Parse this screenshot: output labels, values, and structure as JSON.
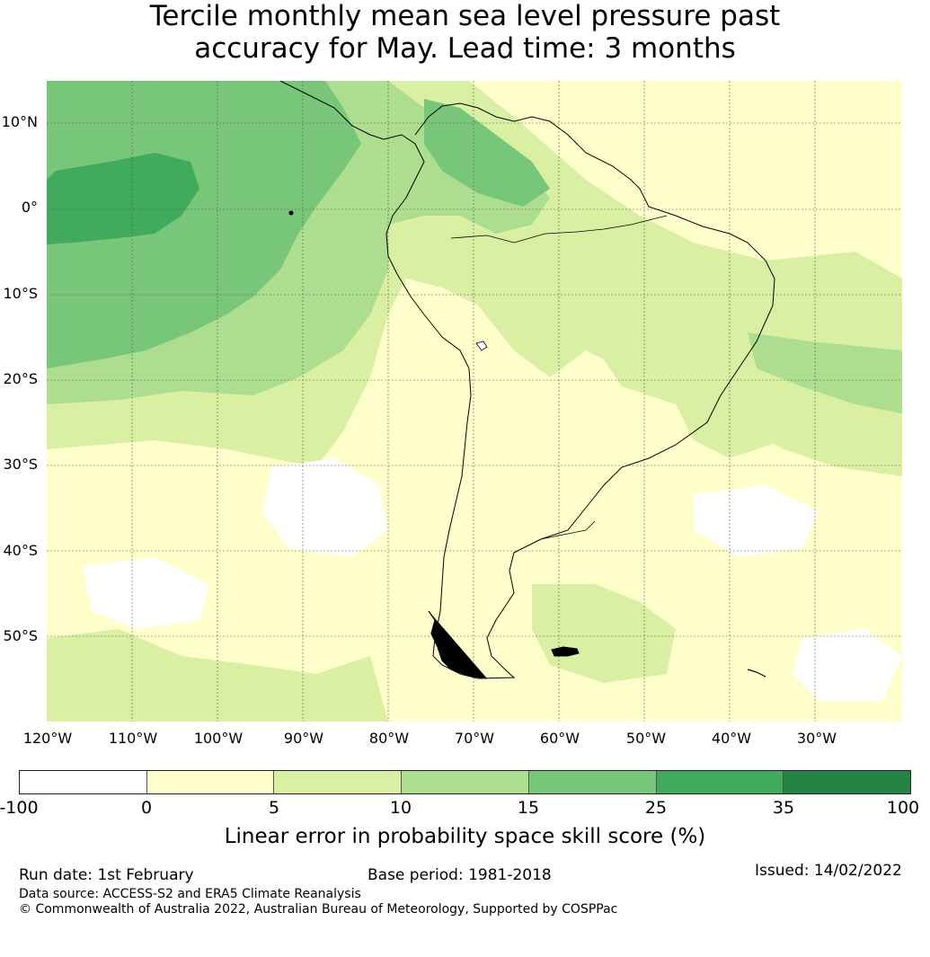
{
  "title_line1": "Tercile monthly mean sea level pressure past",
  "title_line2": "accuracy for May. Lead time: 3 months",
  "map": {
    "lat_labels": [
      "10°N",
      "0°",
      "10°S",
      "20°S",
      "30°S",
      "40°S",
      "50°S"
    ],
    "lon_labels": [
      "120°W",
      "110°W",
      "100°W",
      "90°W",
      "80°W",
      "70°W",
      "60°W",
      "50°W",
      "40°W",
      "30°W"
    ],
    "gridlines": true
  },
  "colorbar": {
    "ticks": [
      "-100",
      "0",
      "5",
      "10",
      "15",
      "25",
      "35",
      "100"
    ],
    "colors": [
      "#ffffff",
      "#ffffcc",
      "#d9f0a3",
      "#addd8e",
      "#78c679",
      "#41ab5d",
      "#238443"
    ],
    "title": "Linear error in probability space skill score (%)"
  },
  "footer": {
    "run_date": "Run date: 1st February",
    "base_period": "Base period: 1981-2018",
    "issued": "Issued: 14/02/2022",
    "data_source": "Data source: ACCESS-S2 and ERA5 Climate Reanalysis",
    "copyright": "© Commonwealth of Australia 2022, Australian Bureau of Meteorology, Supported by COSPPac"
  }
}
